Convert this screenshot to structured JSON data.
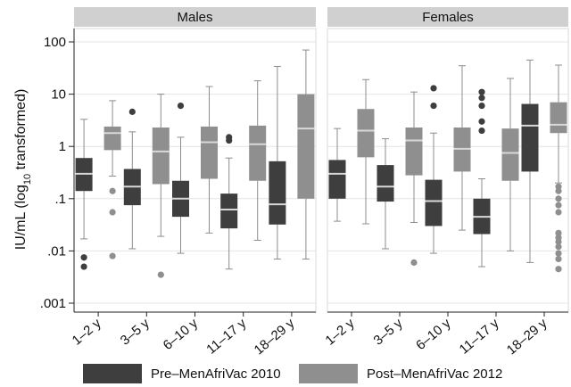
{
  "chart_data": {
    "type": "boxplot",
    "y_scale": "log10",
    "ylim": [
      0.001,
      100
    ],
    "y_ticks": [
      {
        "value": 100,
        "label": "100"
      },
      {
        "value": 10,
        "label": "10"
      },
      {
        "value": 1,
        "label": "1"
      },
      {
        "value": 0.1,
        "label": ".1"
      },
      {
        "value": 0.01,
        "label": ".01"
      },
      {
        "value": 0.001,
        "label": ".001"
      }
    ],
    "ylabel": {
      "prefix": "IU/mL (log",
      "sub": "10",
      "suffix": " transformed)"
    },
    "categories": [
      "1–2 y",
      "3–5 y",
      "6–10 y",
      "11–17 y",
      "18–29 y"
    ],
    "panels": [
      {
        "title": "Males",
        "boxes": [
          {
            "category": "1–2 y",
            "series": "Pre–MenAfriVac 2010",
            "min": 0.017,
            "q1": 0.14,
            "median": 0.3,
            "q3": 0.6,
            "max": 3.3,
            "outliers": [
              0.0075,
              0.005
            ]
          },
          {
            "category": "1–2 y",
            "series": "Post–MenAfriVac 2012",
            "min": 0.27,
            "q1": 0.85,
            "median": 1.8,
            "q3": 2.4,
            "max": 7.5,
            "outliers": [
              0.14,
              0.055,
              0.008
            ]
          },
          {
            "category": "3–5 y",
            "series": "Pre–MenAfriVac 2010",
            "min": 0.011,
            "q1": 0.075,
            "median": 0.17,
            "q3": 0.37,
            "max": 1.9,
            "outliers": [
              4.6
            ]
          },
          {
            "category": "3–5 y",
            "series": "Post–MenAfriVac 2012",
            "min": 0.019,
            "q1": 0.19,
            "median": 0.8,
            "q3": 2.3,
            "max": 10,
            "outliers": [
              0.0035
            ]
          },
          {
            "category": "6–10 y",
            "series": "Pre–MenAfriVac 2010",
            "min": 0.009,
            "q1": 0.045,
            "median": 0.1,
            "q3": 0.22,
            "max": 1.5,
            "outliers": [
              6
            ]
          },
          {
            "category": "6–10 y",
            "series": "Post–MenAfriVac 2012",
            "min": 0.022,
            "q1": 0.24,
            "median": 1.2,
            "q3": 2.4,
            "max": 14,
            "outliers": []
          },
          {
            "category": "11–17 y",
            "series": "Pre–MenAfriVac 2010",
            "min": 0.0045,
            "q1": 0.027,
            "median": 0.062,
            "q3": 0.125,
            "max": 0.6,
            "outliers": [
              1.5,
              1.3
            ]
          },
          {
            "category": "11–17 y",
            "series": "Post–MenAfriVac 2012",
            "min": 0.016,
            "q1": 0.22,
            "median": 1.1,
            "q3": 2.5,
            "max": 18,
            "outliers": []
          },
          {
            "category": "18–29 y",
            "series": "Pre–MenAfriVac 2010",
            "min": 0.007,
            "q1": 0.032,
            "median": 0.078,
            "q3": 0.52,
            "max": 34,
            "outliers": []
          },
          {
            "category": "18–29 y",
            "series": "Post–MenAfriVac 2012",
            "min": 0.007,
            "q1": 0.1,
            "median": 2.2,
            "q3": 10,
            "max": 70,
            "outliers": []
          }
        ]
      },
      {
        "title": "Females",
        "boxes": [
          {
            "category": "1–2 y",
            "series": "Pre–MenAfriVac 2010",
            "min": 0.037,
            "q1": 0.1,
            "median": 0.3,
            "q3": 0.55,
            "max": 2.2,
            "outliers": []
          },
          {
            "category": "1–2 y",
            "series": "Post–MenAfriVac 2012",
            "min": 0.033,
            "q1": 0.62,
            "median": 2,
            "q3": 5.2,
            "max": 19,
            "outliers": []
          },
          {
            "category": "3–5 y",
            "series": "Pre–MenAfriVac 2010",
            "min": 0.011,
            "q1": 0.088,
            "median": 0.17,
            "q3": 0.44,
            "max": 1.4,
            "outliers": []
          },
          {
            "category": "3–5 y",
            "series": "Post–MenAfriVac 2012",
            "min": 0.035,
            "q1": 0.28,
            "median": 1.3,
            "q3": 2.3,
            "max": 11,
            "outliers": [
              0.006
            ]
          },
          {
            "category": "6–10 y",
            "series": "Pre–MenAfriVac 2010",
            "min": 0.009,
            "q1": 0.03,
            "median": 0.09,
            "q3": 0.23,
            "max": 1.8,
            "outliers": [
              13,
              6
            ]
          },
          {
            "category": "6–10 y",
            "series": "Post–MenAfriVac 2012",
            "min": 0.025,
            "q1": 0.33,
            "median": 0.9,
            "q3": 2.3,
            "max": 35,
            "outliers": []
          },
          {
            "category": "11–17 y",
            "series": "Pre–MenAfriVac 2010",
            "min": 0.005,
            "q1": 0.021,
            "median": 0.045,
            "q3": 0.1,
            "max": 0.24,
            "outliers": [
              11,
              8.5,
              6,
              3,
              2
            ]
          },
          {
            "category": "11–17 y",
            "series": "Post–MenAfriVac 2012",
            "min": 0.01,
            "q1": 0.22,
            "median": 0.75,
            "q3": 2.2,
            "max": 20,
            "outliers": []
          },
          {
            "category": "18–29 y",
            "series": "Pre–MenAfriVac 2010",
            "min": 0.006,
            "q1": 0.33,
            "median": 2.5,
            "q3": 6.5,
            "max": 45,
            "outliers": []
          },
          {
            "category": "18–29 y",
            "series": "Post–MenAfriVac 2012",
            "min": 0.2,
            "q1": 1.8,
            "median": 2.6,
            "q3": 7,
            "max": 36,
            "outliers": [
              0.17,
              0.14,
              0.1,
              0.075,
              0.055,
              0.022,
              0.018,
              0.015,
              0.012,
              0.009,
              0.007,
              0.0045
            ]
          }
        ]
      }
    ],
    "series": [
      {
        "name": "Pre–MenAfriVac 2010",
        "color": "#3e3e3e"
      },
      {
        "name": "Post–MenAfriVac 2012",
        "color": "#8f8f8f"
      }
    ],
    "legend_position": "bottom",
    "grid": "horizontal",
    "strip_color": "#d0d0d0",
    "median_color": "#d8d8d8",
    "whisker_color": "#8c8c8c"
  }
}
